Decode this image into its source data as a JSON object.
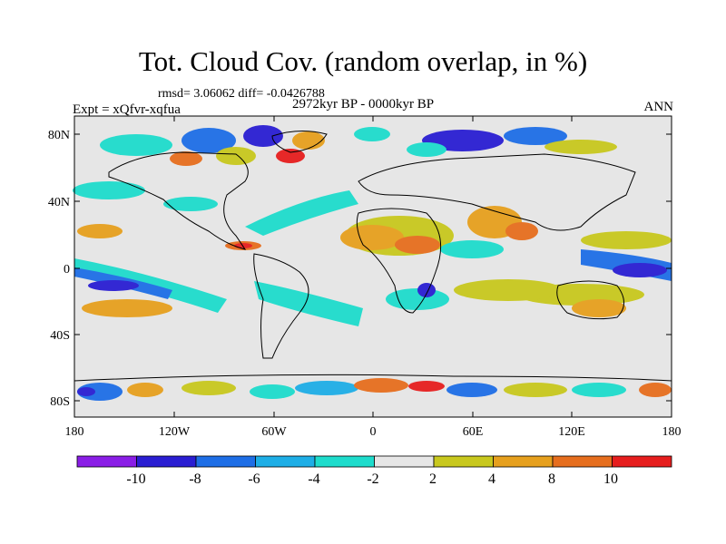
{
  "title": "Tot. Cloud Cov. (random overlap, in %)",
  "stats": "rmsd= 3.06062 diff= -0.0426788",
  "expt": "Expt = xQfvr-xqfua",
  "period": "2972kyr BP - 0000kyr BP",
  "season": "ANN",
  "lat_labels": [
    "80N",
    "40N",
    "0",
    "40S",
    "80S"
  ],
  "lon_labels": [
    "180",
    "120W",
    "60W",
    "0",
    "60E",
    "120E",
    "180"
  ],
  "colorbar": {
    "labels": [
      "-10",
      "-8",
      "-6",
      "-4",
      "-2",
      "2",
      "4",
      "8",
      "10"
    ],
    "colors": [
      "#8a1ee6",
      "#2a1ed2",
      "#1e6ee6",
      "#1eaee6",
      "#1edccc",
      "#e6e6e6",
      "#c8c81e",
      "#e6a01e",
      "#e66e1e",
      "#e61e1e"
    ]
  }
}
